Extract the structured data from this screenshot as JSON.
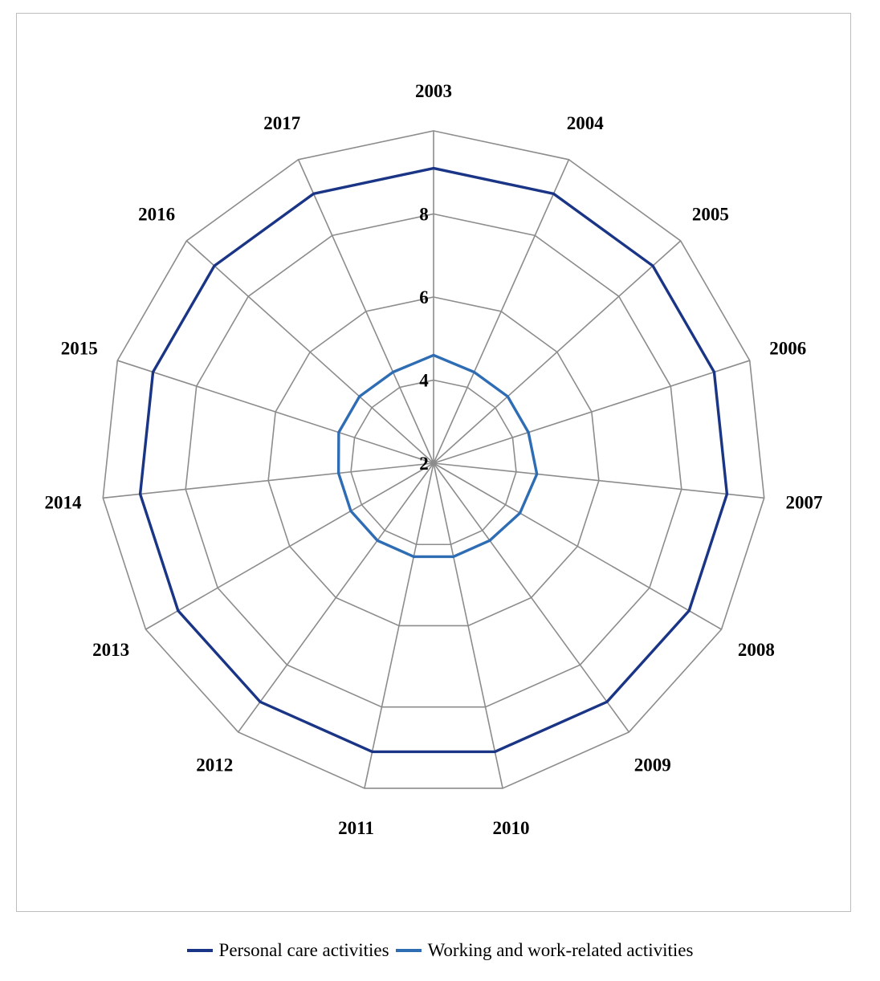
{
  "chart_data": {
    "type": "radar",
    "title": "",
    "categories": [
      "2003",
      "2004",
      "2005",
      "2006",
      "2007",
      "2008",
      "2009",
      "2010",
      "2011",
      "2012",
      "2013",
      "2014",
      "2015",
      "2016",
      "2017"
    ],
    "r_ticks": [
      "2",
      "4",
      "6",
      "8"
    ],
    "r_range": [
      2,
      10
    ],
    "grid": true,
    "legend_position": "bottom",
    "series": [
      {
        "name": "Personal care activities",
        "color": "#1a3585",
        "values": [
          9.1,
          9.1,
          9.1,
          9.1,
          9.1,
          9.1,
          9.1,
          9.1,
          9.1,
          9.1,
          9.1,
          9.1,
          9.1,
          9.1,
          9.1
        ]
      },
      {
        "name": "Working and work-related activities",
        "color": "#2e6db4",
        "values": [
          4.6,
          4.4,
          4.4,
          4.4,
          4.5,
          4.4,
          4.3,
          4.3,
          4.3,
          4.3,
          4.3,
          4.3,
          4.4,
          4.4,
          4.4
        ]
      }
    ]
  }
}
